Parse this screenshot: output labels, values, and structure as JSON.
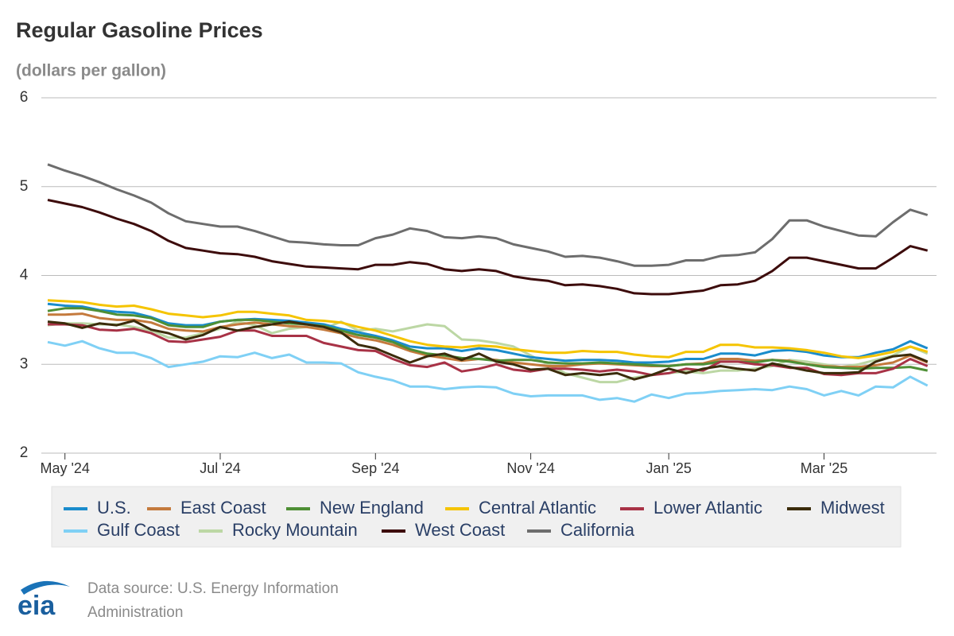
{
  "chart_data": {
    "type": "line",
    "title": "Regular Gasoline Prices",
    "subtitle": "(dollars per gallon)",
    "categories": [
      null,
      "May '24",
      null,
      null,
      null,
      null,
      null,
      null,
      null,
      null,
      "Jul '24",
      null,
      null,
      null,
      null,
      null,
      null,
      null,
      null,
      "Sep '24",
      null,
      null,
      null,
      null,
      null,
      null,
      null,
      null,
      "Nov '24",
      null,
      null,
      null,
      null,
      null,
      null,
      null,
      "Jan '25",
      null,
      null,
      null,
      null,
      null,
      null,
      null,
      null,
      "Mar '25",
      null,
      null,
      null,
      null,
      null,
      null
    ],
    "ylim": [
      2,
      6
    ],
    "yticks": [
      2,
      3,
      4,
      5,
      6
    ],
    "grid": true,
    "series": [
      {
        "name": "U.S.",
        "color": "#1a8ccc",
        "values": [
          3.68,
          3.66,
          3.65,
          3.61,
          3.59,
          3.58,
          3.53,
          3.46,
          3.44,
          3.44,
          3.48,
          3.5,
          3.51,
          3.5,
          3.49,
          3.47,
          3.45,
          3.4,
          3.36,
          3.32,
          3.27,
          3.2,
          3.18,
          3.18,
          3.15,
          3.18,
          3.16,
          3.12,
          3.08,
          3.06,
          3.04,
          3.05,
          3.05,
          3.04,
          3.02,
          3.02,
          3.03,
          3.06,
          3.06,
          3.12,
          3.12,
          3.1,
          3.15,
          3.16,
          3.14,
          3.1,
          3.08,
          3.08,
          3.13,
          3.17,
          3.26,
          3.18
        ]
      },
      {
        "name": "East Coast",
        "color": "#c47a3d",
        "values": [
          3.56,
          3.56,
          3.57,
          3.52,
          3.5,
          3.5,
          3.47,
          3.4,
          3.38,
          3.37,
          3.42,
          3.45,
          3.47,
          3.45,
          3.43,
          3.42,
          3.39,
          3.35,
          3.3,
          3.27,
          3.22,
          3.15,
          3.1,
          3.07,
          3.04,
          3.06,
          3.05,
          3.02,
          3.0,
          2.98,
          2.98,
          3.0,
          3.01,
          3.0,
          2.99,
          2.98,
          2.98,
          3.0,
          3.01,
          3.06,
          3.06,
          3.04,
          3.05,
          3.04,
          3.0,
          2.98,
          2.97,
          2.97,
          2.99,
          3.02,
          3.1,
          3.02
        ]
      },
      {
        "name": "New England",
        "color": "#4e8f35",
        "values": [
          3.6,
          3.63,
          3.63,
          3.6,
          3.56,
          3.55,
          3.52,
          3.44,
          3.42,
          3.42,
          3.48,
          3.5,
          3.5,
          3.48,
          3.46,
          3.45,
          3.43,
          3.38,
          3.33,
          3.3,
          3.25,
          3.17,
          3.12,
          3.1,
          3.07,
          3.06,
          3.04,
          3.05,
          3.05,
          3.02,
          3.01,
          3.01,
          3.02,
          3.01,
          3.0,
          2.99,
          2.98,
          3.0,
          3.0,
          3.03,
          3.03,
          3.02,
          3.05,
          3.03,
          3.0,
          2.97,
          2.96,
          2.95,
          2.96,
          2.96,
          2.97,
          2.93
        ]
      },
      {
        "name": "Central Atlantic",
        "color": "#f5c400",
        "values": [
          3.72,
          3.71,
          3.7,
          3.67,
          3.65,
          3.66,
          3.62,
          3.57,
          3.55,
          3.53,
          3.55,
          3.59,
          3.59,
          3.57,
          3.55,
          3.5,
          3.49,
          3.47,
          3.42,
          3.38,
          3.32,
          3.26,
          3.22,
          3.2,
          3.19,
          3.21,
          3.2,
          3.17,
          3.15,
          3.13,
          3.13,
          3.15,
          3.14,
          3.14,
          3.11,
          3.09,
          3.08,
          3.14,
          3.14,
          3.22,
          3.22,
          3.19,
          3.19,
          3.18,
          3.16,
          3.13,
          3.09,
          3.07,
          3.1,
          3.14,
          3.2,
          3.14
        ]
      },
      {
        "name": "Lower Atlantic",
        "color": "#a83246",
        "values": [
          3.45,
          3.45,
          3.44,
          3.39,
          3.38,
          3.4,
          3.35,
          3.26,
          3.25,
          3.28,
          3.31,
          3.38,
          3.38,
          3.32,
          3.32,
          3.32,
          3.24,
          3.2,
          3.16,
          3.15,
          3.06,
          2.99,
          2.97,
          3.02,
          2.92,
          2.95,
          3.0,
          2.94,
          2.92,
          2.95,
          2.95,
          2.94,
          2.92,
          2.94,
          2.92,
          2.88,
          2.9,
          2.95,
          2.93,
          3.03,
          3.03,
          3.0,
          2.99,
          2.96,
          2.96,
          2.89,
          2.88,
          2.9,
          2.9,
          2.95,
          3.06,
          2.98
        ]
      },
      {
        "name": "Midwest",
        "color": "#3b2c0b",
        "values": [
          3.48,
          3.46,
          3.41,
          3.46,
          3.44,
          3.49,
          3.39,
          3.35,
          3.28,
          3.33,
          3.42,
          3.38,
          3.42,
          3.45,
          3.48,
          3.45,
          3.42,
          3.36,
          3.22,
          3.18,
          3.1,
          3.02,
          3.09,
          3.12,
          3.05,
          3.12,
          3.03,
          3.0,
          2.94,
          2.95,
          2.88,
          2.9,
          2.88,
          2.9,
          2.83,
          2.88,
          2.95,
          2.9,
          2.95,
          2.98,
          2.95,
          2.93,
          3.01,
          2.97,
          2.93,
          2.9,
          2.9,
          2.91,
          3.03,
          3.09,
          3.11,
          3.03
        ]
      },
      {
        "name": "Gulf Coast",
        "color": "#7fd0f5",
        "values": [
          3.25,
          3.21,
          3.26,
          3.18,
          3.13,
          3.13,
          3.07,
          2.97,
          3.0,
          3.03,
          3.09,
          3.08,
          3.13,
          3.07,
          3.11,
          3.02,
          3.02,
          3.01,
          2.91,
          2.86,
          2.82,
          2.75,
          2.75,
          2.72,
          2.74,
          2.75,
          2.74,
          2.67,
          2.64,
          2.65,
          2.65,
          2.65,
          2.6,
          2.62,
          2.58,
          2.66,
          2.62,
          2.67,
          2.68,
          2.7,
          2.71,
          2.72,
          2.71,
          2.75,
          2.72,
          2.65,
          2.7,
          2.65,
          2.75,
          2.74,
          2.86,
          2.76
        ]
      },
      {
        "name": "Rocky Mountain",
        "color": "#bcd7a4",
        "values": [
          3.44,
          3.46,
          3.46,
          3.45,
          3.45,
          3.42,
          3.38,
          3.3,
          3.3,
          3.35,
          3.4,
          3.48,
          3.44,
          3.35,
          3.4,
          3.42,
          3.4,
          3.48,
          3.38,
          3.4,
          3.37,
          3.41,
          3.45,
          3.43,
          3.28,
          3.27,
          3.24,
          3.2,
          3.1,
          3.0,
          2.9,
          2.85,
          2.8,
          2.8,
          2.85,
          2.88,
          2.9,
          2.92,
          2.9,
          2.93,
          2.93,
          2.95,
          2.98,
          3.05,
          3.03,
          3.0,
          2.97,
          3.0,
          3.05,
          3.1,
          3.2,
          3.12
        ]
      },
      {
        "name": "West Coast",
        "color": "#3d0c0c",
        "values": [
          4.85,
          4.81,
          4.77,
          4.71,
          4.64,
          4.58,
          4.5,
          4.39,
          4.31,
          4.28,
          4.25,
          4.24,
          4.21,
          4.16,
          4.13,
          4.1,
          4.09,
          4.08,
          4.07,
          4.12,
          4.12,
          4.15,
          4.13,
          4.07,
          4.05,
          4.07,
          4.05,
          3.99,
          3.96,
          3.94,
          3.89,
          3.9,
          3.88,
          3.85,
          3.8,
          3.79,
          3.79,
          3.81,
          3.83,
          3.89,
          3.9,
          3.94,
          4.05,
          4.2,
          4.2,
          4.16,
          4.12,
          4.08,
          4.08,
          4.2,
          4.33,
          4.28
        ]
      },
      {
        "name": "California",
        "color": "#6d6d6d",
        "values": [
          5.25,
          5.18,
          5.12,
          5.05,
          4.97,
          4.9,
          4.82,
          4.7,
          4.61,
          4.58,
          4.55,
          4.55,
          4.5,
          4.44,
          4.38,
          4.37,
          4.35,
          4.34,
          4.34,
          4.42,
          4.46,
          4.53,
          4.5,
          4.43,
          4.42,
          4.44,
          4.42,
          4.35,
          4.31,
          4.27,
          4.21,
          4.22,
          4.2,
          4.16,
          4.11,
          4.11,
          4.12,
          4.17,
          4.17,
          4.22,
          4.23,
          4.26,
          4.41,
          4.62,
          4.62,
          4.55,
          4.5,
          4.45,
          4.44,
          4.6,
          4.74,
          4.68
        ]
      }
    ],
    "logo": "eia",
    "source": [
      "Data source: U.S. Energy Information",
      "Administration"
    ]
  }
}
